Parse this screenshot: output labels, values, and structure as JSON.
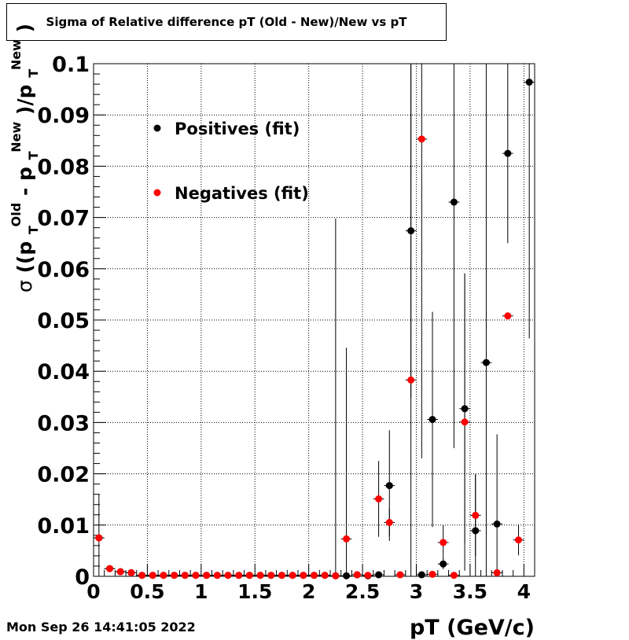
{
  "chart_data": {
    "type": "scatter",
    "title": "Sigma of Relative difference pT (Old - New)/New vs pT",
    "xlabel": "pT (GeV/c)",
    "ylabel": {
      "sigma": "σ",
      "open": "((p",
      "sub1": "T",
      "sup1": "Old",
      "minus": " - p",
      "sub2": "T",
      "sup2": "New",
      "slash": ")/p",
      "sub3": "T",
      "sup3": "New",
      "close": ")"
    },
    "xlim": [
      0,
      4.1
    ],
    "ylim": [
      0,
      0.1
    ],
    "grid": true,
    "x_ticks": [
      "0",
      "0.5",
      "1",
      "1.5",
      "2",
      "2.5",
      "3",
      "3.5",
      "4"
    ],
    "y_ticks": [
      "0",
      "0.01",
      "0.02",
      "0.03",
      "0.04",
      "0.05",
      "0.06",
      "0.07",
      "0.08",
      "0.09",
      "0.1"
    ],
    "legend": {
      "placement": "top-left"
    },
    "series": [
      {
        "name": "Positives (fit)",
        "color": "#000000",
        "points": [
          {
            "x": 0.05,
            "y": 0.0075,
            "yerr": 0.0085
          },
          {
            "x": 0.15,
            "y": 0.0015,
            "yerr": 0.0003
          },
          {
            "x": 0.25,
            "y": 0.0009,
            "yerr": 0.0002
          },
          {
            "x": 0.35,
            "y": 0.0007,
            "yerr": 0.0002
          },
          {
            "x": 0.45,
            "y": 0.0002,
            "yerr": 0.0001
          },
          {
            "x": 0.55,
            "y": 0.0002,
            "yerr": 0.0001
          },
          {
            "x": 0.65,
            "y": 0.0002,
            "yerr": 0.0001
          },
          {
            "x": 0.75,
            "y": 0.0002,
            "yerr": 0.0001
          },
          {
            "x": 0.85,
            "y": 0.0002,
            "yerr": 0.0001
          },
          {
            "x": 0.95,
            "y": 0.0002,
            "yerr": 0.0001
          },
          {
            "x": 1.05,
            "y": 0.0002,
            "yerr": 0.0001
          },
          {
            "x": 1.15,
            "y": 0.0002,
            "yerr": 0.0001
          },
          {
            "x": 1.25,
            "y": 0.0002,
            "yerr": 0.0001
          },
          {
            "x": 1.35,
            "y": 0.0002,
            "yerr": 0.0001
          },
          {
            "x": 1.45,
            "y": 0.0002,
            "yerr": 0.0001
          },
          {
            "x": 1.55,
            "y": 0.0002,
            "yerr": 0.0001
          },
          {
            "x": 1.65,
            "y": 0.0002,
            "yerr": 0.0001
          },
          {
            "x": 1.75,
            "y": 0.0002,
            "yerr": 0.0001
          },
          {
            "x": 1.85,
            "y": 0.0002,
            "yerr": 0.0001
          },
          {
            "x": 1.95,
            "y": 0.0002,
            "yerr": 0.0001
          },
          {
            "x": 2.05,
            "y": 0.0002,
            "yerr": 0.0001
          },
          {
            "x": 2.15,
            "y": 0.0002,
            "yerr": 0.0001
          },
          {
            "x": 2.25,
            "y": 0.0001,
            "yerr": 0.0001
          },
          {
            "x": 2.35,
            "y": 0.0001,
            "yerr": 0.0001
          },
          {
            "x": 2.45,
            "y": 0.0003,
            "yerr": 0.0001
          },
          {
            "x": 2.55,
            "y": 0.0001,
            "yerr": 0.0001
          },
          {
            "x": 2.65,
            "y": 0.0003,
            "yerr": 0.0001
          },
          {
            "x": 2.75,
            "y": 0.0177,
            "yerr": 0.0108
          },
          {
            "x": 2.95,
            "y": 0.0674,
            "yerr": 0.0326
          },
          {
            "x": 3.05,
            "y": 0.0003,
            "yerr": 0.0001
          },
          {
            "x": 3.15,
            "y": 0.0306,
            "yerr": 0.021
          },
          {
            "x": 3.25,
            "y": 0.0024,
            "yerr": 0.001
          },
          {
            "x": 3.35,
            "y": 0.073,
            "yerr": 0.048
          },
          {
            "x": 3.45,
            "y": 0.0327,
            "yerr": 0.0263
          },
          {
            "x": 3.55,
            "y": 0.0089,
            "yerr": 0.011
          },
          {
            "x": 3.65,
            "y": 0.0417,
            "yerr": 0.0583
          },
          {
            "x": 3.75,
            "y": 0.0102,
            "yerr": 0.0175
          },
          {
            "x": 3.85,
            "y": 0.0825,
            "yerr": 0.0175
          },
          {
            "x": 4.05,
            "y": 0.0964,
            "yerr": 0.05
          }
        ]
      },
      {
        "name": "Negatives (fit)",
        "color": "#ff0000",
        "points": [
          {
            "x": 0.05,
            "y": 0.0075,
            "yerr": 0.0006
          },
          {
            "x": 0.15,
            "y": 0.0015,
            "yerr": 0.0002
          },
          {
            "x": 0.25,
            "y": 0.0009,
            "yerr": 0.0002
          },
          {
            "x": 0.35,
            "y": 0.0007,
            "yerr": 0.0002
          },
          {
            "x": 0.45,
            "y": 0.0002,
            "yerr": 0.0001
          },
          {
            "x": 0.55,
            "y": 0.0002,
            "yerr": 0.0001
          },
          {
            "x": 0.65,
            "y": 0.0002,
            "yerr": 0.0001
          },
          {
            "x": 0.75,
            "y": 0.0002,
            "yerr": 0.0001
          },
          {
            "x": 0.85,
            "y": 0.0002,
            "yerr": 0.0001
          },
          {
            "x": 0.95,
            "y": 0.0002,
            "yerr": 0.0001
          },
          {
            "x": 1.05,
            "y": 0.0002,
            "yerr": 0.0001
          },
          {
            "x": 1.15,
            "y": 0.0002,
            "yerr": 0.0001
          },
          {
            "x": 1.25,
            "y": 0.0002,
            "yerr": 0.0001
          },
          {
            "x": 1.35,
            "y": 0.0002,
            "yerr": 0.0001
          },
          {
            "x": 1.45,
            "y": 0.0002,
            "yerr": 0.0001
          },
          {
            "x": 1.55,
            "y": 0.0002,
            "yerr": 0.0001
          },
          {
            "x": 1.65,
            "y": 0.0002,
            "yerr": 0.0001
          },
          {
            "x": 1.75,
            "y": 0.0002,
            "yerr": 0.0001
          },
          {
            "x": 1.85,
            "y": 0.0002,
            "yerr": 0.0001
          },
          {
            "x": 1.95,
            "y": 0.0002,
            "yerr": 0.0001
          },
          {
            "x": 2.05,
            "y": 0.0002,
            "yerr": 0.0001
          },
          {
            "x": 2.15,
            "y": 0.0002,
            "yerr": 0.0001
          },
          {
            "x": 2.25,
            "y": 0.0001,
            "yerr": 0.0697
          },
          {
            "x": 2.35,
            "y": 0.0073,
            "yerr": 0.0373
          },
          {
            "x": 2.45,
            "y": 0.0003,
            "yerr": 0.0001
          },
          {
            "x": 2.55,
            "y": 0.0002,
            "yerr": 0.0001
          },
          {
            "x": 2.65,
            "y": 0.0151,
            "yerr": 0.0074
          },
          {
            "x": 2.75,
            "y": 0.0105,
            "yerr": 0.0027
          },
          {
            "x": 2.85,
            "y": 0.0003,
            "yerr": 0.0001
          },
          {
            "x": 2.95,
            "y": 0.0383,
            "yerr": 0.0617
          },
          {
            "x": 3.05,
            "y": 0.0853,
            "yerr": 0.0623
          },
          {
            "x": 3.15,
            "y": 0.0004,
            "yerr": 0.0001
          },
          {
            "x": 3.25,
            "y": 0.0066,
            "yerr": 0.0034
          },
          {
            "x": 3.35,
            "y": 0.0002,
            "yerr": 0.0001
          },
          {
            "x": 3.45,
            "y": 0.0301,
            "yerr": 0.029
          },
          {
            "x": 3.55,
            "y": 0.0119,
            "yerr": 0.008
          },
          {
            "x": 3.75,
            "y": 0.0007,
            "yerr": 0.0001
          },
          {
            "x": 3.85,
            "y": 0.0508,
            "yerr": 0.0001
          },
          {
            "x": 3.95,
            "y": 0.0071,
            "yerr": 0.003
          }
        ]
      }
    ]
  },
  "footer": {
    "timestamp": "Mon Sep 26 14:41:05 2022"
  }
}
